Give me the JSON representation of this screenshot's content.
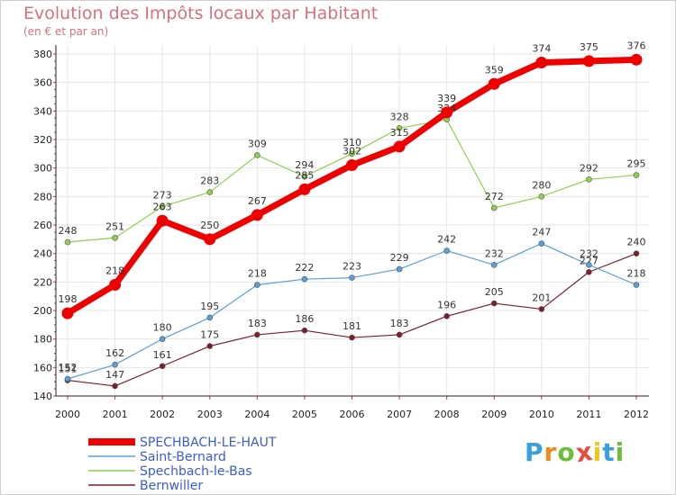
{
  "header": {
    "title": "Evolution des Impôts locaux par Habitant",
    "subtitle": "(en € et par an)"
  },
  "logo": {
    "letters": [
      "P",
      "r",
      "o",
      "x",
      "i",
      "t",
      "i"
    ],
    "colors": [
      "#3aa0dd",
      "#f08a1c",
      "#6bbf3a",
      "#e84c3d",
      "#f5c518",
      "#3aa0dd",
      "#6bbf3a"
    ]
  },
  "chart_data": {
    "type": "line",
    "title": "Evolution des Impôts locaux par Habitant",
    "subtitle": "(en € et par an)",
    "xlabel": "",
    "ylabel": "",
    "ylim": [
      140,
      380
    ],
    "yticks": [
      140,
      160,
      180,
      200,
      220,
      240,
      260,
      280,
      300,
      320,
      340,
      360,
      380
    ],
    "grid": true,
    "legend_position": "bottom-left",
    "x": [
      "2000",
      "2001",
      "2002",
      "2003",
      "2004",
      "2005",
      "2006",
      "2007",
      "2008",
      "2009",
      "2010",
      "2011",
      "2012"
    ],
    "series": [
      {
        "name": "Bernwiller",
        "color": "#7a1f2b",
        "width": 1.2,
        "values": [
          151,
          147,
          161,
          175,
          183,
          186,
          181,
          183,
          196,
          205,
          201,
          227,
          240
        ]
      },
      {
        "name": "Spechbach-le-Bas",
        "color": "#8fd14f",
        "width": 1.2,
        "values": [
          248,
          251,
          273,
          283,
          309,
          294,
          310,
          328,
          334,
          272,
          280,
          292,
          295
        ]
      },
      {
        "name": "Saint-Bernard",
        "color": "#5aa0d8",
        "width": 1.2,
        "values": [
          152,
          162,
          180,
          195,
          218,
          222,
          223,
          229,
          242,
          232,
          247,
          232,
          218
        ]
      },
      {
        "name": "SPECHBACH-LE-HAUT",
        "color": "#ee0000",
        "width": 7,
        "values": [
          198,
          218,
          263,
          250,
          267,
          285,
          302,
          315,
          339,
          359,
          374,
          375,
          376
        ]
      }
    ],
    "legend_order": [
      "SPECHBACH-LE-HAUT",
      "Saint-Bernard",
      "Spechbach-le-Bas",
      "Bernwiller"
    ]
  }
}
